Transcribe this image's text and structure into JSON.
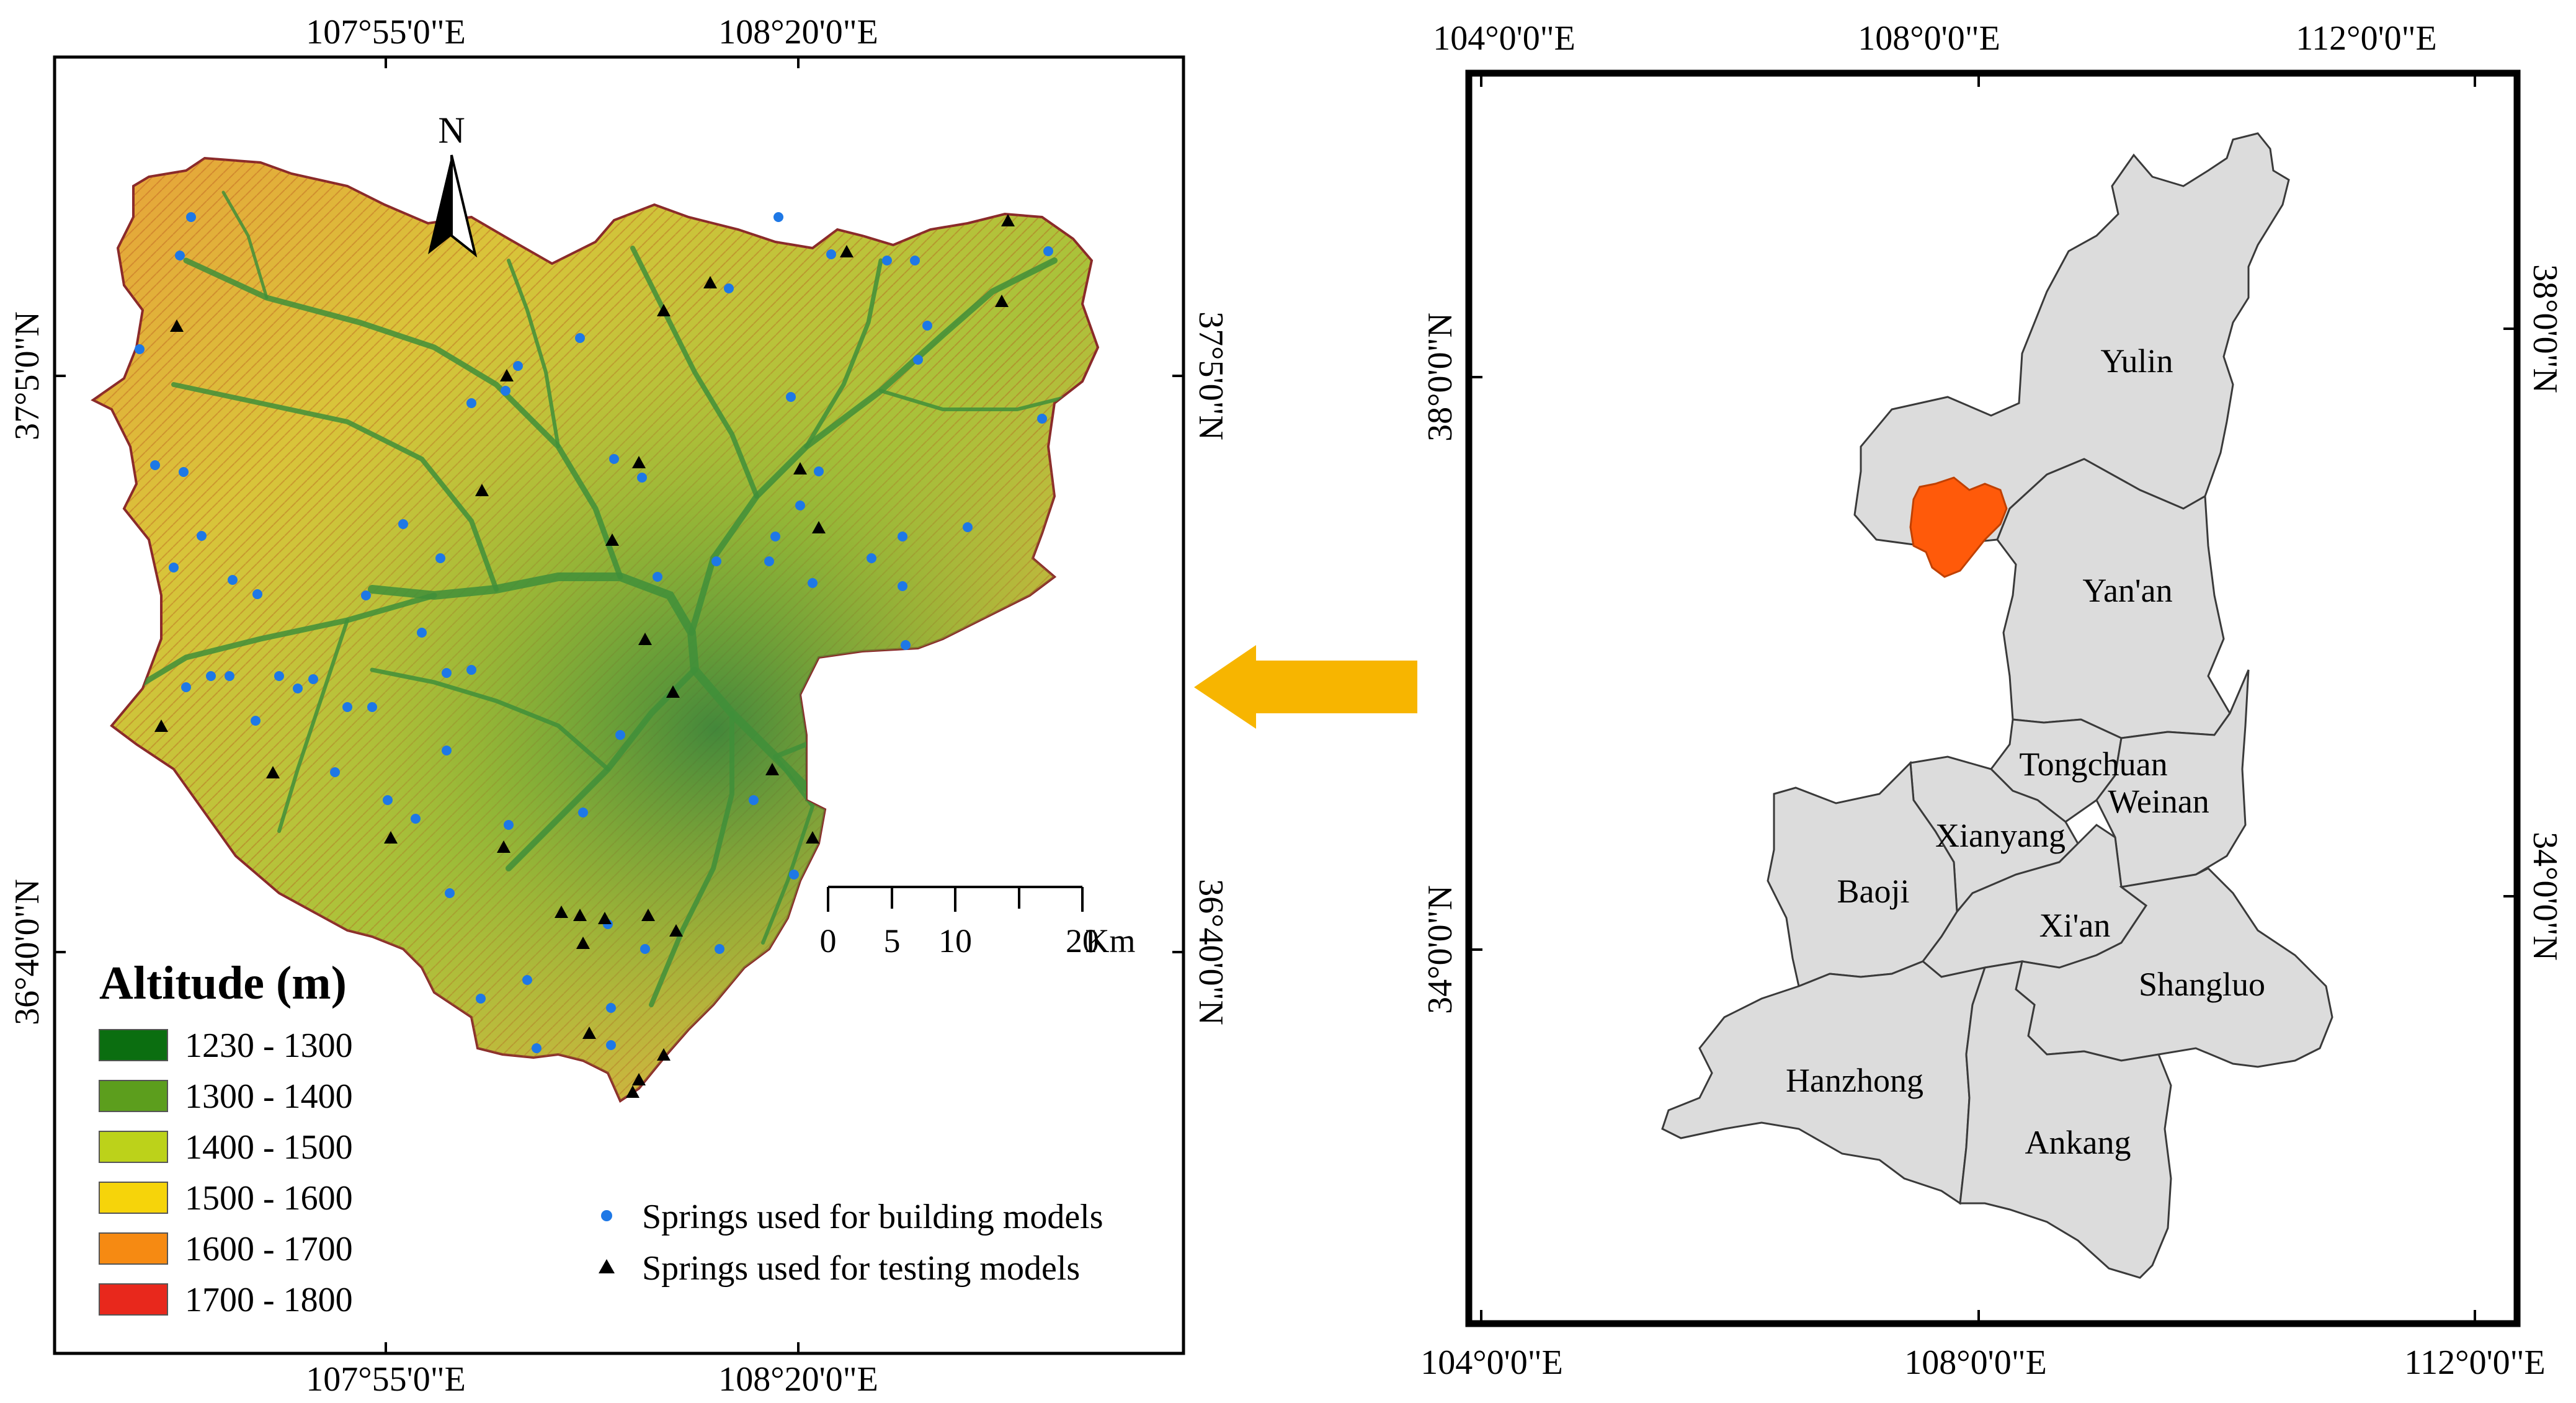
{
  "left_map": {
    "top_coords": [
      "107°55'0\"E",
      "108°20'0\"E"
    ],
    "bottom_coords": [
      "107°55'0\"E",
      "108°20'0\"E"
    ],
    "left_coords": [
      "37°5'0\"N",
      "36°40'0\"N"
    ],
    "right_coords": [
      "37°5'0\"N",
      "36°40'0\"N"
    ],
    "north_label": "N",
    "scale_ticks": [
      "0",
      "5",
      "10",
      "20"
    ],
    "scale_unit": "Km",
    "legend": {
      "title": "Altitude (m)",
      "items": [
        {
          "label": "1230 - 1300",
          "color": "#0b6e10"
        },
        {
          "label": "1300 - 1400",
          "color": "#5c9e1d"
        },
        {
          "label": "1400 - 1500",
          "color": "#bcd21a"
        },
        {
          "label": "1500 - 1600",
          "color": "#f6d40a"
        },
        {
          "label": "1600 - 1700",
          "color": "#f68a12"
        },
        {
          "label": "1700 - 1800",
          "color": "#e8281c"
        }
      ]
    },
    "springs_legend": {
      "building": "Springs used for building models",
      "testing": "Springs used for testing models"
    }
  },
  "right_map": {
    "top_coords": [
      "104°0'0\"E",
      "108°0'0\"E",
      "112°0'0\"E"
    ],
    "bottom_coords": [
      "104°0'0\"E",
      "108°0'0\"E",
      "112°0'0\"E"
    ],
    "left_coords": [
      "38°0'0\"N",
      "34°0'0\"N"
    ],
    "right_coords": [
      "38°0'0\"N",
      "34°0'0\"N"
    ],
    "regions": [
      "Yulin",
      "Yan'an",
      "Tongchuan",
      "Weinan",
      "Xianyang",
      "Baoji",
      "Xi'an",
      "Shangluo",
      "Hanzhong",
      "Ankang"
    ],
    "study_area_color": "#ff5a0a",
    "region_fill": "#dcdcdc"
  },
  "arrow_color": "#f7b500"
}
